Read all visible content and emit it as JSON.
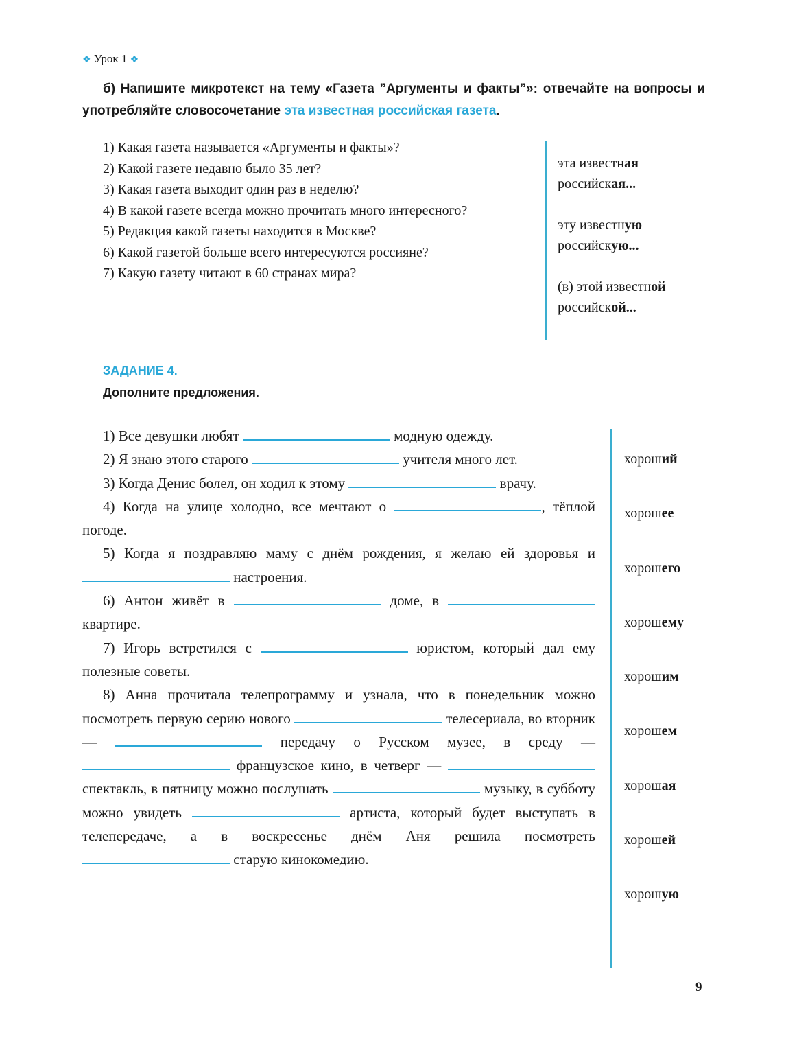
{
  "header": {
    "lesson": "Урок 1",
    "diamond_icon": "four-diamond-ornament"
  },
  "instruction": {
    "text": "б) Напишите микротекст на тему «Газета ”Аргументы и факты”»: отвечайте на вопросы и употребляйте словосочетание ",
    "highlight": "эта известная российская газета",
    "end": "."
  },
  "questions": [
    "1) Какая газета называется «Аргументы и факты»?",
    "2) Какой газете недавно было 35 лет?",
    "3) Какая газета выходит один раз в неделю?",
    "4) В какой газете всегда можно прочитать много интересного?",
    "5) Редакция какой газеты находится в Москве?",
    "6) Какой газетой больше всего интересуются россияне?",
    "7) Какую газету читают в 60 странах мира?"
  ],
  "phrases": [
    {
      "line1": [
        [
          "эта известн",
          ""
        ],
        [
          "ая",
          ""
        ]
      ],
      "a1": "эта известн",
      "b1": "ая",
      "a2": "российск",
      "b2": "ая..."
    },
    {
      "a1": "эту известн",
      "b1": "ую",
      "a2": "российск",
      "b2": "ую..."
    },
    {
      "a1": "(в) этой известн",
      "b1": "ой",
      "a2": "российск",
      "b2": "ой..."
    }
  ],
  "task4": {
    "title": "ЗАДАНИЕ 4.",
    "subtitle": "Дополните предложения.",
    "sentences": [
      [
        "1) Все девушки любят ",
        null,
        " модную одежду."
      ],
      [
        "2) Я знаю этого старого ",
        null,
        " учителя много лет."
      ],
      [
        "3) Когда Денис болел, он ходил к этому ",
        null,
        " врачу."
      ],
      [
        "4) Когда на улице холодно, все мечтают о ",
        null,
        ", тёплой погоде."
      ],
      [
        "5) Когда я поздравляю маму с днём рождения, я желаю ей здоровья и ",
        null,
        " настроения."
      ],
      [
        "6) Антон живёт в ",
        null,
        " доме, в ",
        null,
        " квартире."
      ],
      [
        "7) Игорь встретился с ",
        null,
        " юристом, который дал ему полезные советы."
      ],
      [
        "8) Анна прочитала телепрограмму и узнала, что в понедельник можно посмотреть первую серию нового ",
        null,
        " телесериала, во вторник — ",
        null,
        " передачу о Русском музее, в среду — ",
        null,
        " французское кино, в четверг — ",
        null,
        " спектакль, в пятницу можно послушать ",
        null,
        " музыку, в субботу можно увидеть ",
        null,
        " артиста, который будет выступать в телепередаче, а в воскресенье днём Аня решила посмотреть ",
        null,
        " старую кинокомедию."
      ]
    ],
    "word_forms": [
      {
        "stem": "хорош",
        "ending": "ий"
      },
      {
        "stem": "хорош",
        "ending": "ее"
      },
      {
        "stem": "хорош",
        "ending": "его"
      },
      {
        "stem": "хорош",
        "ending": "ему"
      },
      {
        "stem": "хорош",
        "ending": "им"
      },
      {
        "stem": "хорош",
        "ending": "ем"
      },
      {
        "stem": "хорош",
        "ending": "ая"
      },
      {
        "stem": "хорош",
        "ending": "ей"
      },
      {
        "stem": "хорош",
        "ending": "ую"
      }
    ]
  },
  "page_number": "9",
  "colors": {
    "accent": "#2aa8d8",
    "rule": "#3aaed0"
  }
}
